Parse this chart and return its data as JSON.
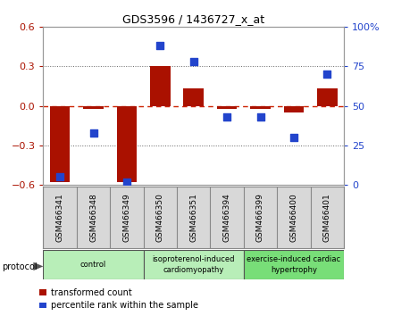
{
  "title": "GDS3596 / 1436727_x_at",
  "samples": [
    "GSM466341",
    "GSM466348",
    "GSM466349",
    "GSM466350",
    "GSM466351",
    "GSM466394",
    "GSM466399",
    "GSM466400",
    "GSM466401"
  ],
  "transformed_count": [
    -0.58,
    -0.02,
    -0.58,
    0.3,
    0.13,
    -0.02,
    -0.02,
    -0.05,
    0.13
  ],
  "percentile_rank": [
    5,
    33,
    2,
    88,
    78,
    43,
    43,
    30,
    70
  ],
  "groups": [
    {
      "label": "control",
      "start": 0,
      "end": 3,
      "color": "#b8eeb8"
    },
    {
      "label": "isoproterenol-induced\ncardiomyopathy",
      "start": 3,
      "end": 6,
      "color": "#b8eeb8"
    },
    {
      "label": "exercise-induced cardiac\nhypertrophy",
      "start": 6,
      "end": 9,
      "color": "#78de78"
    }
  ],
  "bar_color": "#aa1100",
  "dot_color": "#2244cc",
  "zero_line_color": "#cc2200",
  "dotted_line_color": "#666666",
  "ylim_left": [
    -0.6,
    0.6
  ],
  "ylim_right": [
    0,
    100
  ],
  "yticks_left": [
    -0.6,
    -0.3,
    0.0,
    0.3,
    0.6
  ],
  "yticks_right": [
    0,
    25,
    50,
    75,
    100
  ],
  "ytick_right_labels": [
    "0",
    "25",
    "50",
    "75",
    "100%"
  ],
  "sample_box_color": "#d8d8d8",
  "sample_box_edge": "#888888",
  "background_color": "#ffffff",
  "bar_width": 0.6
}
